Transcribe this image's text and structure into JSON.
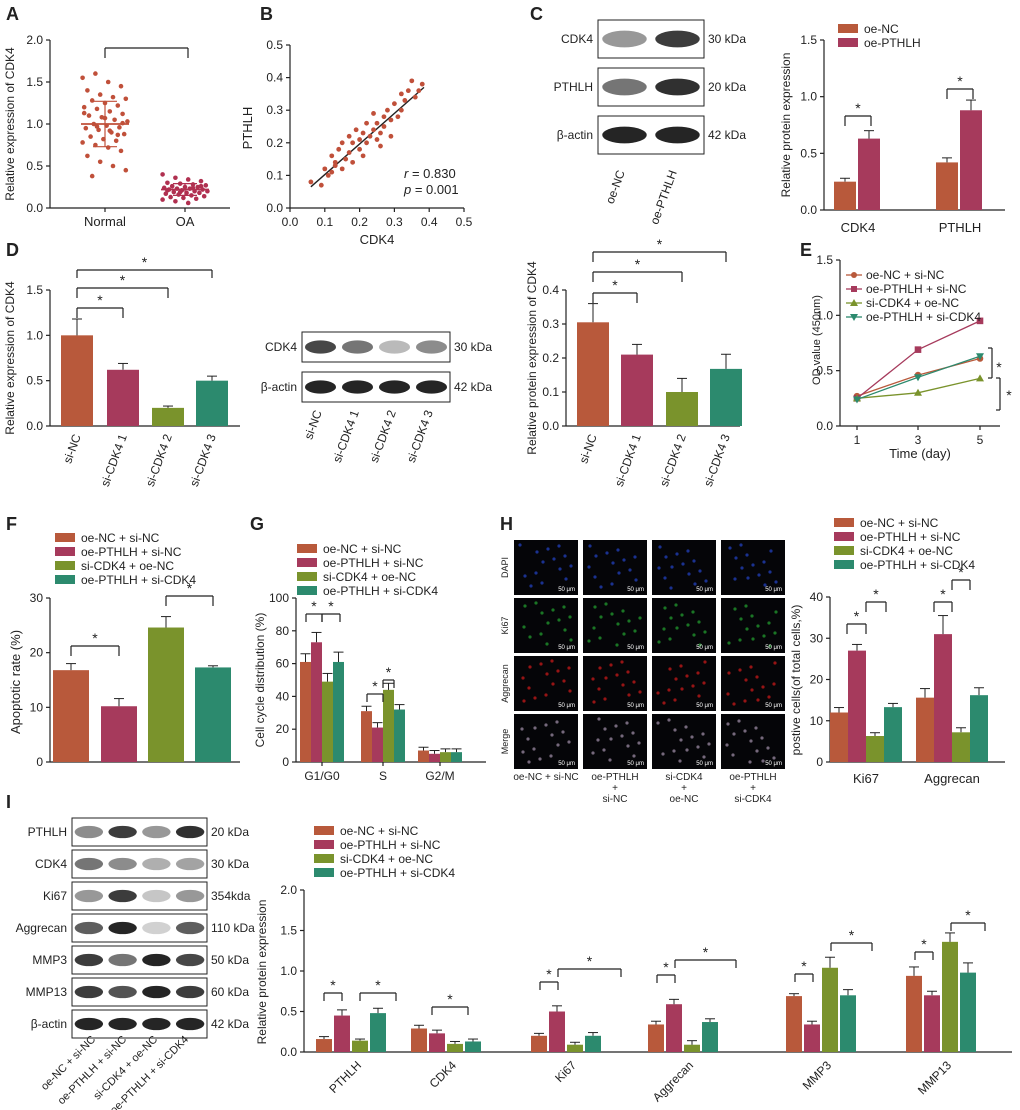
{
  "colors": {
    "c1": "#b8593b",
    "c2": "#a63a5c",
    "c3": "#7a932c",
    "c4": "#2c8a6e",
    "dot_normal": "#c0503a",
    "dot_oa": "#b03050",
    "line": "#222222"
  },
  "star": "*",
  "chart_data": [
    {
      "panel": "A",
      "type": "scatter",
      "ylabel": "Relative expression of CDK4",
      "categories": [
        "Normal",
        "OA"
      ],
      "ylim": [
        0,
        2.0
      ],
      "yticks": [
        "0.0",
        "0.5",
        "1.0",
        "1.5",
        "2.0"
      ],
      "groups": [
        {
          "name": "Normal",
          "mean": 1.0,
          "sd": 0.27,
          "points": [
            1.55,
            1.6,
            1.5,
            1.45,
            1.4,
            1.35,
            1.32,
            1.3,
            1.28,
            1.25,
            1.22,
            1.2,
            1.18,
            1.15,
            1.12,
            1.1,
            1.08,
            1.05,
            1.03,
            1.0,
            0.98,
            0.96,
            0.95,
            0.93,
            0.9,
            0.88,
            0.85,
            0.82,
            0.8,
            0.78,
            0.75,
            0.72,
            0.68,
            0.62,
            0.55,
            0.5,
            0.45,
            0.38,
            1.07,
            0.87,
            1.13,
            0.97,
            0.92,
            1.01
          ]
        },
        {
          "name": "OA",
          "mean": 0.22,
          "sd": 0.07,
          "points": [
            0.4,
            0.36,
            0.34,
            0.32,
            0.3,
            0.29,
            0.28,
            0.27,
            0.26,
            0.25,
            0.25,
            0.24,
            0.23,
            0.23,
            0.22,
            0.22,
            0.21,
            0.2,
            0.2,
            0.19,
            0.18,
            0.18,
            0.17,
            0.16,
            0.15,
            0.14,
            0.13,
            0.12,
            0.11,
            0.1,
            0.08,
            0.06,
            0.26,
            0.21,
            0.19,
            0.24
          ]
        }
      ]
    },
    {
      "panel": "B",
      "type": "scatter",
      "xlabel": "CDK4",
      "ylabel": "PTHLH",
      "xlim": [
        0,
        0.5
      ],
      "ylim": [
        0,
        0.5
      ],
      "xticks": [
        "0.0",
        "0.1",
        "0.2",
        "0.3",
        "0.4",
        "0.5"
      ],
      "yticks": [
        "0.0",
        "0.1",
        "0.2",
        "0.3",
        "0.4",
        "0.5"
      ],
      "r_label": "r",
      "r_value": " = 0.830",
      "p_label": "p",
      "p_value": " = 0.001",
      "fit": [
        [
          0.06,
          0.065
        ],
        [
          0.385,
          0.37
        ]
      ],
      "points": [
        [
          0.06,
          0.08
        ],
        [
          0.09,
          0.07
        ],
        [
          0.1,
          0.12
        ],
        [
          0.12,
          0.11
        ],
        [
          0.12,
          0.16
        ],
        [
          0.13,
          0.13
        ],
        [
          0.14,
          0.18
        ],
        [
          0.15,
          0.12
        ],
        [
          0.15,
          0.2
        ],
        [
          0.16,
          0.15
        ],
        [
          0.17,
          0.22
        ],
        [
          0.17,
          0.17
        ],
        [
          0.18,
          0.14
        ],
        [
          0.18,
          0.2
        ],
        [
          0.19,
          0.24
        ],
        [
          0.2,
          0.18
        ],
        [
          0.2,
          0.21
        ],
        [
          0.21,
          0.23
        ],
        [
          0.21,
          0.16
        ],
        [
          0.22,
          0.26
        ],
        [
          0.22,
          0.2
        ],
        [
          0.23,
          0.22
        ],
        [
          0.24,
          0.24
        ],
        [
          0.24,
          0.29
        ],
        [
          0.25,
          0.21
        ],
        [
          0.25,
          0.26
        ],
        [
          0.26,
          0.23
        ],
        [
          0.27,
          0.28
        ],
        [
          0.27,
          0.25
        ],
        [
          0.28,
          0.3
        ],
        [
          0.29,
          0.27
        ],
        [
          0.29,
          0.22
        ],
        [
          0.3,
          0.32
        ],
        [
          0.31,
          0.28
        ],
        [
          0.32,
          0.3
        ],
        [
          0.32,
          0.35
        ],
        [
          0.33,
          0.33
        ],
        [
          0.34,
          0.36
        ],
        [
          0.35,
          0.39
        ],
        [
          0.36,
          0.34
        ],
        [
          0.37,
          0.36
        ],
        [
          0.38,
          0.38
        ],
        [
          0.13,
          0.14
        ],
        [
          0.11,
          0.1
        ],
        [
          0.26,
          0.19
        ]
      ]
    },
    {
      "panel": "C",
      "type": "bar",
      "ylabel": "Relative protein expression",
      "categories": [
        "CDK4",
        "PTHLH"
      ],
      "ylim": [
        0,
        1.5
      ],
      "yticks": [
        "0.0",
        "0.5",
        "1.0",
        "1.5"
      ],
      "series": [
        {
          "name": "oe-NC",
          "values": [
            0.25,
            0.42
          ],
          "err": [
            0.03,
            0.04
          ]
        },
        {
          "name": "oe-PTHLH",
          "values": [
            0.63,
            0.88
          ],
          "err": [
            0.07,
            0.09
          ]
        }
      ]
    },
    {
      "panel": "D-left",
      "type": "bar",
      "ylabel": "Relative expression of CDK4",
      "categories": [
        "si-NC",
        "si-CDK4 1",
        "si-CDK4 2",
        "si-CDK4 3"
      ],
      "ylim": [
        0,
        1.5
      ],
      "yticks": [
        "0.0",
        "0.5",
        "1.0",
        "1.5"
      ],
      "values": [
        1.0,
        0.62,
        0.2,
        0.5
      ],
      "err": [
        0.18,
        0.07,
        0.02,
        0.05
      ]
    },
    {
      "panel": "D-right",
      "type": "bar",
      "ylabel": "Relative protein expression of CDK4",
      "categories": [
        "si-NC",
        "si-CDK4 1",
        "si-CDK4 2",
        "si-CDK4 3"
      ],
      "ylim": [
        0,
        0.4
      ],
      "yticks": [
        "0.0",
        "0.1",
        "0.2",
        "0.3",
        "0.4"
      ],
      "values": [
        0.305,
        0.21,
        0.1,
        0.168
      ],
      "err": [
        0.055,
        0.03,
        0.04,
        0.043
      ]
    },
    {
      "panel": "E",
      "type": "line",
      "xlabel": "Time (day)",
      "ylabel": "OD value (450nm)",
      "x": [
        1,
        3,
        5
      ],
      "xticks": [
        "1",
        "3",
        "5"
      ],
      "ylim": [
        0,
        1.5
      ],
      "yticks": [
        "0.0",
        "0.5",
        "1.0",
        "1.5"
      ],
      "series": [
        {
          "name": "oe-NC + si-NC",
          "values": [
            0.27,
            0.46,
            0.61
          ]
        },
        {
          "name": "oe-PTHLH + si-NC",
          "values": [
            0.25,
            0.69,
            0.95
          ]
        },
        {
          "name": "si-CDK4 + oe-NC",
          "values": [
            0.25,
            0.3,
            0.43
          ]
        },
        {
          "name": "oe-PTHLH + si-CDK4",
          "values": [
            0.24,
            0.44,
            0.63
          ]
        }
      ]
    },
    {
      "panel": "F",
      "type": "bar",
      "ylabel": "Apoptotic rate (%)",
      "ylim": [
        0,
        30
      ],
      "yticks": [
        "0",
        "10",
        "20",
        "30"
      ],
      "legend": [
        "oe-NC + si-NC",
        "oe-PTHLH + si-NC",
        "si-CDK4 + oe-NC",
        "oe-PTHLH + si-CDK4"
      ],
      "values": [
        16.8,
        10.2,
        24.6,
        17.3
      ],
      "err": [
        1.2,
        1.4,
        2.0,
        0.3
      ]
    },
    {
      "panel": "G",
      "type": "bar",
      "ylabel": "Cell cycle distribution (%)",
      "categories": [
        "G1/G0",
        "S",
        "G2/M"
      ],
      "ylim": [
        0,
        100
      ],
      "yticks": [
        "0",
        "20",
        "40",
        "60",
        "80",
        "100"
      ],
      "series": [
        {
          "name": "oe-NC + si-NC",
          "values": [
            61,
            31,
            7
          ],
          "err": [
            5,
            3,
            2
          ]
        },
        {
          "name": "oe-PTHLH + si-NC",
          "values": [
            73,
            21,
            5
          ],
          "err": [
            6,
            3,
            2
          ]
        },
        {
          "name": "si-CDK4 + oe-NC",
          "values": [
            49,
            44,
            6
          ],
          "err": [
            5,
            4,
            2
          ]
        },
        {
          "name": "oe-PTHLH + si-CDK4",
          "values": [
            61,
            32,
            6
          ],
          "err": [
            6,
            3,
            2
          ]
        }
      ]
    },
    {
      "panel": "H",
      "type": "bar",
      "ylabel": "postive cells(of total cells,%)",
      "categories": [
        "Ki67",
        "Aggrecan"
      ],
      "ylim": [
        0,
        40
      ],
      "yticks": [
        "0",
        "10",
        "20",
        "30",
        "40"
      ],
      "series": [
        {
          "name": "oe-NC + si-NC",
          "values": [
            12,
            15.6
          ],
          "err": [
            1.2,
            2.2
          ]
        },
        {
          "name": "oe-PTHLH + si-NC",
          "values": [
            27,
            31
          ],
          "err": [
            1.5,
            4.5
          ]
        },
        {
          "name": "si-CDK4 + oe-NC",
          "values": [
            6.3,
            7.2
          ],
          "err": [
            0.8,
            1.1
          ]
        },
        {
          "name": "oe-PTHLH + si-CDK4",
          "values": [
            13.3,
            16.2
          ],
          "err": [
            0.9,
            1.8
          ]
        }
      ]
    },
    {
      "panel": "I",
      "type": "bar",
      "ylabel": "Relative protein expression",
      "categories": [
        "PTHLH",
        "CDK4",
        "Ki67",
        "Aggrecan",
        "MMP3",
        "MMP13"
      ],
      "ylim": [
        0,
        2.0
      ],
      "yticks": [
        "0.0",
        "0.5",
        "1.0",
        "1.5",
        "2.0"
      ],
      "series": [
        {
          "name": "oe-NC + si-NC",
          "values": [
            0.16,
            0.29,
            0.2,
            0.34,
            0.69,
            0.94
          ],
          "err": [
            0.03,
            0.04,
            0.03,
            0.04,
            0.03,
            0.11
          ]
        },
        {
          "name": "oe-PTHLH + si-NC",
          "values": [
            0.45,
            0.23,
            0.5,
            0.59,
            0.34,
            0.7
          ],
          "err": [
            0.07,
            0.04,
            0.07,
            0.06,
            0.04,
            0.05
          ]
        },
        {
          "name": "si-CDK4 + oe-NC",
          "values": [
            0.14,
            0.1,
            0.09,
            0.09,
            1.04,
            1.36
          ],
          "err": [
            0.02,
            0.03,
            0.03,
            0.05,
            0.13,
            0.11
          ]
        },
        {
          "name": "oe-PTHLH + si-CDK4",
          "values": [
            0.48,
            0.13,
            0.2,
            0.37,
            0.7,
            0.98
          ],
          "err": [
            0.06,
            0.03,
            0.04,
            0.04,
            0.07,
            0.12
          ]
        }
      ]
    }
  ],
  "panels": {
    "A": "A",
    "B": "B",
    "C": "C",
    "D": "D",
    "E": "E",
    "F": "F",
    "G": "G",
    "H": "H",
    "I": "I"
  },
  "blots": {
    "C": {
      "rows": [
        {
          "name": "CDK4",
          "kda": "30 kDa"
        },
        {
          "name": "PTHLH",
          "kda": "20 kDa"
        },
        {
          "name": "β-actin",
          "kda": "42 kDa"
        }
      ],
      "lanes": [
        "oe-NC",
        "oe-PTHLH"
      ],
      "intensity": [
        [
          0.45,
          0.85
        ],
        [
          0.6,
          0.9
        ],
        [
          0.95,
          0.95
        ]
      ]
    },
    "D": {
      "rows": [
        {
          "name": "CDK4",
          "kda": "30 kDa"
        },
        {
          "name": "β-actin",
          "kda": "42 kDa"
        }
      ],
      "lanes": [
        "si-NC",
        "si-CDK4 1",
        "si-CDK4 2",
        "si-CDK4 3"
      ],
      "intensity": [
        [
          0.8,
          0.6,
          0.3,
          0.5
        ],
        [
          0.95,
          0.95,
          0.95,
          0.95
        ]
      ]
    },
    "I": {
      "rows": [
        {
          "name": "PTHLH",
          "kda": "20 kDa"
        },
        {
          "name": "CDK4",
          "kda": "30 kDa"
        },
        {
          "name": "Ki67",
          "kda": "354kda"
        },
        {
          "name": "Aggrecan",
          "kda": "110 kDa"
        },
        {
          "name": "MMP3",
          "kda": "50 kDa"
        },
        {
          "name": "MMP13",
          "kda": "60 kDa"
        },
        {
          "name": "β-actin",
          "kda": "42 kDa"
        }
      ],
      "lanes": [
        "oe-NC + si-NC",
        "oe-PTHLH + si-NC",
        "si-CDK4 + oe-NC",
        "oe-PTHLH + si-CDK4"
      ],
      "intensity": [
        [
          0.5,
          0.85,
          0.45,
          0.9
        ],
        [
          0.6,
          0.5,
          0.35,
          0.4
        ],
        [
          0.45,
          0.85,
          0.25,
          0.45
        ],
        [
          0.7,
          0.95,
          0.2,
          0.7
        ],
        [
          0.85,
          0.6,
          0.95,
          0.8
        ],
        [
          0.85,
          0.75,
          0.95,
          0.85
        ],
        [
          0.95,
          0.95,
          0.95,
          0.95
        ]
      ]
    }
  },
  "micro": {
    "rows": [
      "DAPI",
      "Ki67",
      "Aggrecan",
      "Merge"
    ],
    "cols": [
      "oe-NC + si-NC",
      "oe-PTHLH\n+\nsi-NC",
      "si-CDK4\n+\noe-NC",
      "oe-PTHLH\n+\nsi-CDK4"
    ],
    "scale": "50 μm",
    "tints": [
      "#1e3aa8",
      "#1f8a2a",
      "#b01818",
      "#8a7a90"
    ]
  }
}
